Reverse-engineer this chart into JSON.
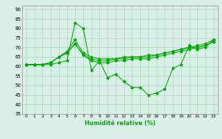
{
  "xlabel": "Humidité relative (%)",
  "ylabel": "",
  "background_color": "#d8f0e8",
  "grid_color": "#b0d8c0",
  "line_color": "#00aa00",
  "xlim": [
    -0.5,
    23.5
  ],
  "ylim": [
    35,
    92
  ],
  "yticks": [
    35,
    40,
    45,
    50,
    55,
    60,
    65,
    70,
    75,
    80,
    85,
    90
  ],
  "xticks": [
    0,
    1,
    2,
    3,
    4,
    5,
    6,
    7,
    8,
    9,
    10,
    11,
    12,
    13,
    14,
    15,
    16,
    17,
    18,
    19,
    20,
    21,
    22,
    23
  ],
  "series": [
    [
      61,
      61,
      61,
      61,
      62,
      63,
      83,
      80,
      58,
      63,
      54,
      56,
      52,
      49,
      49,
      45,
      46,
      48,
      59,
      61,
      71,
      69,
      70,
      74
    ],
    [
      61,
      61,
      61,
      62,
      65,
      68,
      74,
      67,
      65,
      64,
      64,
      64,
      65,
      65,
      65,
      66,
      66,
      67,
      68,
      69,
      70,
      71,
      72,
      74
    ],
    [
      61,
      61,
      61,
      62,
      65,
      67,
      72,
      66,
      64,
      63,
      63,
      64,
      64,
      65,
      65,
      65,
      66,
      67,
      68,
      69,
      70,
      70,
      71,
      73
    ],
    [
      61,
      61,
      61,
      62,
      65,
      67,
      72,
      66,
      63,
      62,
      62,
      63,
      63,
      64,
      64,
      64,
      65,
      66,
      67,
      68,
      69,
      70,
      71,
      73
    ]
  ]
}
